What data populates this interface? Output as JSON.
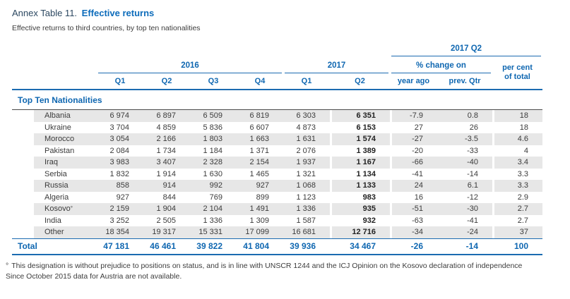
{
  "header": {
    "title_prefix": "Annex Table 11.",
    "title": "Effective returns",
    "subtitle": "Effective returns to third countries, by top ten nationalities"
  },
  "table": {
    "group_2016": "2016",
    "group_2017": "2017",
    "group_2017_q2": "2017 Q2",
    "group_pct_change": "% change on",
    "col_per_cent_of_total": "per cent\nof total",
    "quarter_cols": [
      "Q1",
      "Q2",
      "Q3",
      "Q4",
      "Q1",
      "Q2"
    ],
    "change_cols": [
      "year ago",
      "prev. Qtr"
    ],
    "section_title": "Top Ten Nationalities",
    "rows": [
      {
        "label": "Albania",
        "values": [
          "6 974",
          "6 897",
          "6 509",
          "6 819",
          "6 303",
          "6 351",
          "-7.9",
          "0.8",
          "18"
        ]
      },
      {
        "label": "Ukraine",
        "values": [
          "3 704",
          "4 859",
          "5 836",
          "6 607",
          "4 873",
          "6 153",
          "27",
          "26",
          "18"
        ]
      },
      {
        "label": "Morocco",
        "values": [
          "3 054",
          "2 166",
          "1 803",
          "1 663",
          "1 631",
          "1 574",
          "-27",
          "-3.5",
          "4.6"
        ]
      },
      {
        "label": "Pakistan",
        "values": [
          "2 084",
          "1 734",
          "1 184",
          "1 371",
          "2 076",
          "1 389",
          "-20",
          "-33",
          "4"
        ]
      },
      {
        "label": "Iraq",
        "values": [
          "3 983",
          "3 407",
          "2 328",
          "2 154",
          "1 937",
          "1 167",
          "-66",
          "-40",
          "3.4"
        ]
      },
      {
        "label": "Serbia",
        "values": [
          "1 832",
          "1 914",
          "1 630",
          "1 465",
          "1 321",
          "1 134",
          "-41",
          "-14",
          "3.3"
        ]
      },
      {
        "label": "Russia",
        "values": [
          "858",
          "914",
          "992",
          "927",
          "1 068",
          "1 133",
          "24",
          "6.1",
          "3.3"
        ]
      },
      {
        "label": "Algeria",
        "values": [
          "927",
          "844",
          "769",
          "899",
          "1 123",
          "983",
          "16",
          "-12",
          "2.9"
        ]
      },
      {
        "label": "Kosovo",
        "label_sup": "°",
        "values": [
          "2 159",
          "1 904",
          "2 104",
          "1 491",
          "1 336",
          "935",
          "-51",
          "-30",
          "2.7"
        ]
      },
      {
        "label": "India",
        "values": [
          "3 252",
          "2 505",
          "1 336",
          "1 309",
          "1 587",
          "932",
          "-63",
          "-41",
          "2.7"
        ]
      },
      {
        "label": "Other",
        "values": [
          "18 354",
          "19 317",
          "15 331",
          "17 099",
          "16 681",
          "12 716",
          "-34",
          "-24",
          "37"
        ]
      }
    ],
    "total": {
      "label": "Total",
      "values": [
        "47 181",
        "46 461",
        "39 822",
        "41 804",
        "39 936",
        "34 467",
        "-26",
        "-14",
        "100"
      ]
    }
  },
  "footnote": {
    "symbol": "°",
    "line1": "This designation is without prejudice to positions on status, and is in line with UNSCR 1244 and the ICJ Opinion on the Kosovo declaration of independence",
    "line2": "Since October 2015 data for Austria are not available."
  }
}
